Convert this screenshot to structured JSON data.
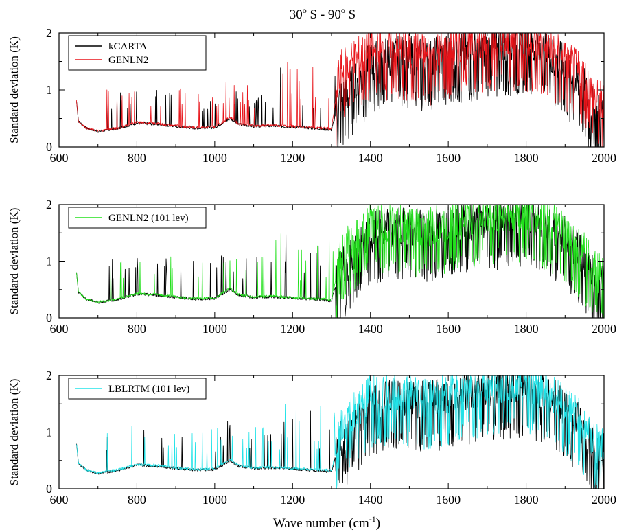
{
  "figure": {
    "title_main": "30",
    "title_deg1": "o",
    "title_mid": " S - 90",
    "title_deg2": "o",
    "title_end": " S",
    "xlabel_main": "Wave number (cm",
    "xlabel_sup": "-1",
    "xlabel_end": ")"
  },
  "chart_data": [
    {
      "type": "line",
      "panel": "top",
      "ylabel": "Standard deviation (K)",
      "xlim": [
        600,
        2000
      ],
      "ylim": [
        0,
        2
      ],
      "xticks": [
        "600",
        "800",
        "1000",
        "1200",
        "1400",
        "1600",
        "1800",
        "2000"
      ],
      "yticks": [
        "0",
        "1",
        "2"
      ],
      "legend_position": "top-left",
      "series": [
        {
          "name": "kCARTA",
          "color": "#000000",
          "x": [
            645,
            650,
            670,
            700,
            750,
            800,
            850,
            900,
            950,
            1000,
            1040,
            1060,
            1100,
            1150,
            1200,
            1250,
            1300,
            1320,
            1350,
            1400,
            1450,
            1500,
            1550,
            1600,
            1650,
            1700,
            1750,
            1800,
            1850,
            1900,
            1950,
            1980,
            2000
          ],
          "y": [
            0.8,
            0.45,
            0.33,
            0.27,
            0.32,
            0.42,
            0.4,
            0.36,
            0.33,
            0.34,
            0.5,
            0.4,
            0.36,
            0.37,
            0.35,
            0.33,
            0.3,
            0.8,
            1.0,
            1.45,
            1.55,
            1.55,
            1.5,
            1.6,
            1.65,
            1.7,
            1.75,
            1.8,
            1.65,
            1.4,
            1.0,
            0.55,
            0.6
          ]
        },
        {
          "name": "GENLN2",
          "color": "#e8141a",
          "x": [
            645,
            650,
            670,
            700,
            750,
            800,
            850,
            900,
            950,
            1000,
            1040,
            1060,
            1100,
            1150,
            1200,
            1250,
            1300,
            1320,
            1350,
            1400,
            1450,
            1500,
            1550,
            1600,
            1650,
            1700,
            1750,
            1800,
            1850,
            1900,
            1950,
            1980,
            2000
          ],
          "y": [
            0.8,
            0.45,
            0.33,
            0.28,
            0.33,
            0.43,
            0.41,
            0.37,
            0.34,
            0.35,
            0.52,
            0.41,
            0.37,
            0.38,
            0.36,
            0.34,
            0.32,
            1.25,
            1.5,
            1.65,
            1.7,
            1.65,
            1.6,
            1.7,
            1.8,
            1.8,
            1.85,
            1.85,
            1.75,
            1.5,
            1.2,
            0.8,
            0.75
          ]
        }
      ]
    },
    {
      "type": "line",
      "panel": "middle",
      "ylabel": "Standard deviation (K)",
      "xlim": [
        600,
        2000
      ],
      "ylim": [
        0,
        2
      ],
      "xticks": [
        "600",
        "800",
        "1000",
        "1200",
        "1400",
        "1600",
        "1800",
        "2000"
      ],
      "yticks": [
        "0",
        "1",
        "2"
      ],
      "legend_position": "top-left",
      "series": [
        {
          "name": "",
          "color": "#000000",
          "x": [
            645,
            650,
            670,
            700,
            750,
            800,
            850,
            900,
            950,
            1000,
            1040,
            1060,
            1100,
            1150,
            1200,
            1250,
            1300,
            1320,
            1350,
            1400,
            1450,
            1500,
            1550,
            1600,
            1650,
            1700,
            1750,
            1800,
            1850,
            1900,
            1950,
            1980,
            2000
          ],
          "y": [
            0.8,
            0.45,
            0.33,
            0.27,
            0.32,
            0.42,
            0.4,
            0.36,
            0.33,
            0.34,
            0.5,
            0.4,
            0.36,
            0.37,
            0.35,
            0.33,
            0.3,
            0.8,
            1.0,
            1.45,
            1.55,
            1.55,
            1.5,
            1.6,
            1.65,
            1.7,
            1.75,
            1.8,
            1.65,
            1.4,
            1.0,
            0.55,
            0.6
          ]
        },
        {
          "name": "GENLN2 (101 lev)",
          "color": "#22e01c",
          "x": [
            645,
            650,
            670,
            700,
            750,
            800,
            850,
            900,
            950,
            1000,
            1040,
            1060,
            1100,
            1150,
            1200,
            1250,
            1300,
            1320,
            1350,
            1400,
            1450,
            1500,
            1550,
            1600,
            1650,
            1700,
            1750,
            1800,
            1850,
            1900,
            1950,
            1980,
            2000
          ],
          "y": [
            0.8,
            0.45,
            0.33,
            0.28,
            0.33,
            0.43,
            0.41,
            0.37,
            0.34,
            0.35,
            0.52,
            0.41,
            0.37,
            0.38,
            0.36,
            0.34,
            0.32,
            1.0,
            1.3,
            1.6,
            1.65,
            1.6,
            1.55,
            1.65,
            1.75,
            1.8,
            1.82,
            1.85,
            1.7,
            1.45,
            1.1,
            0.75,
            0.7
          ]
        }
      ]
    },
    {
      "type": "line",
      "panel": "bottom",
      "ylabel": "Standard deviation (K)",
      "xlim": [
        600,
        2000
      ],
      "ylim": [
        0,
        2
      ],
      "xticks": [
        "600",
        "800",
        "1000",
        "1200",
        "1400",
        "1600",
        "1800",
        "2000"
      ],
      "yticks": [
        "0",
        "1",
        "2"
      ],
      "legend_position": "top-left",
      "series": [
        {
          "name": "",
          "color": "#000000",
          "x": [
            645,
            650,
            670,
            700,
            750,
            800,
            850,
            900,
            950,
            1000,
            1040,
            1060,
            1100,
            1150,
            1200,
            1250,
            1300,
            1320,
            1350,
            1400,
            1450,
            1500,
            1550,
            1600,
            1650,
            1700,
            1750,
            1800,
            1850,
            1900,
            1950,
            1980,
            2000
          ],
          "y": [
            0.8,
            0.45,
            0.33,
            0.27,
            0.32,
            0.42,
            0.4,
            0.36,
            0.33,
            0.34,
            0.5,
            0.4,
            0.36,
            0.37,
            0.35,
            0.33,
            0.3,
            0.8,
            1.0,
            1.45,
            1.55,
            1.55,
            1.5,
            1.6,
            1.65,
            1.7,
            1.75,
            1.8,
            1.65,
            1.4,
            1.0,
            0.55,
            0.6
          ]
        },
        {
          "name": "LBLRTM (101 lev)",
          "color": "#22e3e8",
          "x": [
            645,
            650,
            670,
            700,
            750,
            800,
            850,
            900,
            950,
            1000,
            1040,
            1060,
            1100,
            1150,
            1200,
            1250,
            1300,
            1320,
            1350,
            1400,
            1450,
            1500,
            1550,
            1600,
            1650,
            1700,
            1750,
            1800,
            1850,
            1900,
            1950,
            1980,
            2000
          ],
          "y": [
            0.8,
            0.45,
            0.33,
            0.28,
            0.33,
            0.43,
            0.41,
            0.37,
            0.34,
            0.35,
            0.52,
            0.41,
            0.37,
            0.38,
            0.36,
            0.34,
            0.32,
            0.95,
            1.25,
            1.6,
            1.65,
            1.6,
            1.55,
            1.65,
            1.75,
            1.8,
            1.82,
            1.85,
            1.7,
            1.45,
            1.1,
            0.75,
            0.7
          ]
        }
      ]
    }
  ]
}
